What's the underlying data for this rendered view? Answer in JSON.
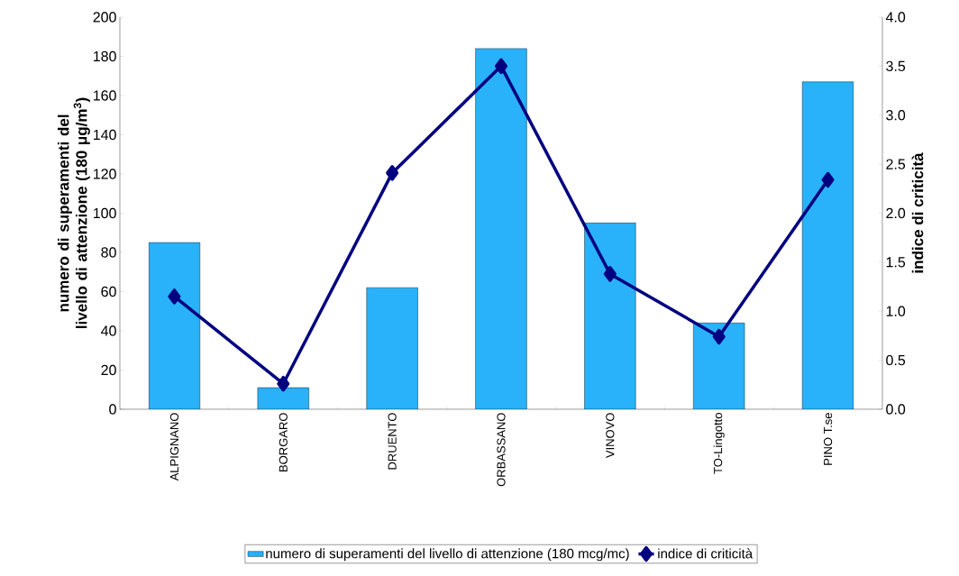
{
  "chart_data": {
    "type": "bar",
    "categories": [
      "ALPIGNANO",
      "BORGARO",
      "DRUENTO",
      "ORBASSANO",
      "VINOVO",
      "TO-Lingotto",
      "PINO T.se"
    ],
    "ylabel": "numero di superamenti del livello di attenzione (180 μg/m$^{3}$)",
    "y2label": "indice di criticità",
    "ylim": [
      0,
      200
    ],
    "yticks": [
      0,
      20,
      40,
      60,
      80,
      100,
      120,
      140,
      160,
      180,
      200
    ],
    "y2lim": [
      0,
      4
    ],
    "y2ticks": [
      {
        "value": 0,
        "label": "0.0"
      },
      {
        "value": 0.5,
        "label": "0.5"
      },
      {
        "value": 1,
        "label": "1.0"
      },
      {
        "value": 1.5,
        "label": "1.5"
      },
      {
        "value": 2,
        "label": "2.0"
      },
      {
        "value": 2.5,
        "label": "2.5"
      },
      {
        "value": 3,
        "label": "3.0"
      },
      {
        "value": 3.5,
        "label": "3.5"
      },
      {
        "value": 4,
        "label": "4.0"
      }
    ],
    "legend": "bottom",
    "grid": false,
    "series": [
      {
        "name": "numero di superamenti del livello di attenzione (180 mcg/mc)",
        "color": "#29b1f9",
        "values": [
          85,
          11,
          62,
          184,
          95,
          44,
          167
        ]
      },
      {
        "name": "indice di criticità",
        "type": "line",
        "axis": "y2",
        "color": "#000080",
        "marker": "diamond",
        "values": [
          1.15,
          0.26,
          2.41,
          3.5,
          1.38,
          0.74,
          2.34
        ]
      }
    ]
  }
}
